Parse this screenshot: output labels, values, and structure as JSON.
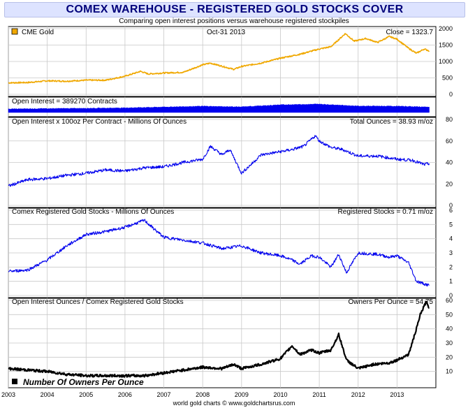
{
  "header": {
    "title": "COMEX WAREHOUSE - REGISTERED GOLD STOCKS COVER",
    "subtitle": "Comparing open interest positions versus warehouse registered stockpiles",
    "footer": "world gold charts © www.goldchartsrus.com"
  },
  "x_axis": {
    "years": [
      "2003",
      "2004",
      "2005",
      "2006",
      "2007",
      "2008",
      "2009",
      "2010",
      "2011",
      "2012",
      "2013"
    ]
  },
  "colors": {
    "gold": "#f0a800",
    "blue": "#0000ee",
    "black": "#000000",
    "grid": "#c8c8c8",
    "title_bg": "#dde3ff"
  },
  "chart_data": [
    {
      "type": "line",
      "panel": "gold",
      "title_left": "CME Gold",
      "title_mid": "Oct-31  2013",
      "title_right": "Close = 1323.7",
      "legend_marker": "gold-square",
      "ylim": [
        0,
        2000
      ],
      "yticks": [
        0,
        500,
        1000,
        1500,
        2000
      ],
      "x": [
        2003.0,
        2003.5,
        2004.0,
        2004.5,
        2005.0,
        2005.5,
        2006.0,
        2006.4,
        2006.6,
        2007.0,
        2007.5,
        2008.0,
        2008.2,
        2008.8,
        2009.0,
        2009.5,
        2010.0,
        2010.5,
        2011.0,
        2011.3,
        2011.67,
        2011.9,
        2012.2,
        2012.5,
        2012.8,
        2013.0,
        2013.3,
        2013.5,
        2013.7,
        2013.83
      ],
      "values": [
        350,
        360,
        410,
        400,
        430,
        430,
        550,
        700,
        620,
        650,
        670,
        900,
        950,
        760,
        850,
        950,
        1100,
        1220,
        1380,
        1450,
        1850,
        1620,
        1700,
        1580,
        1760,
        1680,
        1400,
        1250,
        1380,
        1323.7
      ]
    },
    {
      "type": "area",
      "panel": "open-interest",
      "title_left": "Open Interest = 389270 Contracts",
      "description_free": true,
      "x": [
        2003.0,
        2004.0,
        2005.0,
        2006.0,
        2007.0,
        2008.0,
        2009.0,
        2010.0,
        2011.0,
        2012.0,
        2013.0,
        2013.83
      ],
      "values": [
        250000,
        280000,
        300000,
        330000,
        390000,
        450000,
        400000,
        550000,
        600000,
        460000,
        450000,
        389270
      ],
      "ylim": [
        0,
        700000
      ]
    },
    {
      "type": "line",
      "panel": "open-interest-ounces",
      "title_left": "Open Interest x 100oz Per Contract - Millions Of Ounces",
      "title_right": "Total Ounces = 38.93 m/oz",
      "ylim": [
        0,
        80
      ],
      "yticks": [
        0,
        20,
        40,
        60,
        80
      ],
      "x": [
        2003.0,
        2003.5,
        2004.0,
        2004.5,
        2005.0,
        2005.5,
        2006.0,
        2006.5,
        2007.0,
        2007.5,
        2008.0,
        2008.2,
        2008.5,
        2008.7,
        2009.0,
        2009.3,
        2009.5,
        2010.0,
        2010.3,
        2010.6,
        2010.9,
        2011.0,
        2011.3,
        2011.6,
        2012.0,
        2012.5,
        2013.0,
        2013.4,
        2013.7,
        2013.83
      ],
      "values": [
        18,
        24,
        25,
        28,
        30,
        33,
        32,
        35,
        36,
        40,
        43,
        55,
        47,
        52,
        30,
        40,
        47,
        50,
        52,
        55,
        65,
        60,
        54,
        52,
        46,
        46,
        43,
        42,
        38,
        38.93
      ]
    },
    {
      "type": "line",
      "panel": "registered-stocks",
      "title_left": "Comex Registered Gold Stocks - Millions Of Ounces",
      "title_right": "Registered Stocks = 0.71 m/oz",
      "ylim": [
        0,
        6
      ],
      "yticks": [
        0,
        1,
        2,
        3,
        4,
        5,
        6
      ],
      "x": [
        2003.0,
        2003.5,
        2004.0,
        2004.5,
        2005.0,
        2005.5,
        2006.0,
        2006.5,
        2006.7,
        2007.0,
        2007.5,
        2008.0,
        2008.5,
        2009.0,
        2009.5,
        2010.0,
        2010.3,
        2010.5,
        2010.8,
        2011.0,
        2011.3,
        2011.5,
        2011.7,
        2012.0,
        2012.5,
        2012.8,
        2013.0,
        2013.3,
        2013.5,
        2013.83
      ],
      "values": [
        1.7,
        1.8,
        2.5,
        3.5,
        4.3,
        4.5,
        4.8,
        5.3,
        4.8,
        4.1,
        3.9,
        3.7,
        3.3,
        3.5,
        3.0,
        2.8,
        2.5,
        2.2,
        2.8,
        2.7,
        2.0,
        2.9,
        1.6,
        3.0,
        2.9,
        2.7,
        2.8,
        2.3,
        1.0,
        0.71
      ]
    },
    {
      "type": "line",
      "panel": "owners-per-ounce",
      "title_left": "Open Interest Ounces / Comex Registered Gold Stocks",
      "title_right": "Owners Per Ounce = 54.75",
      "legend_label": "Number Of Owners Per Ounce",
      "ylim": [
        0,
        60
      ],
      "yticks": [
        10,
        20,
        30,
        40,
        50,
        60
      ],
      "x": [
        2003.0,
        2003.5,
        2004.0,
        2004.5,
        2005.0,
        2005.5,
        2006.0,
        2006.5,
        2007.0,
        2007.5,
        2008.0,
        2008.5,
        2008.8,
        2009.0,
        2009.5,
        2010.0,
        2010.3,
        2010.5,
        2010.8,
        2011.0,
        2011.3,
        2011.5,
        2011.7,
        2012.0,
        2012.4,
        2012.8,
        2013.0,
        2013.3,
        2013.5,
        2013.6,
        2013.75,
        2013.83
      ],
      "values": [
        12,
        11,
        10,
        8,
        7,
        7,
        7,
        7,
        9,
        11,
        13,
        12,
        15,
        12,
        15,
        19,
        28,
        22,
        25,
        23,
        25,
        36,
        18,
        12,
        15,
        16,
        18,
        22,
        40,
        50,
        59,
        54.75
      ]
    }
  ]
}
